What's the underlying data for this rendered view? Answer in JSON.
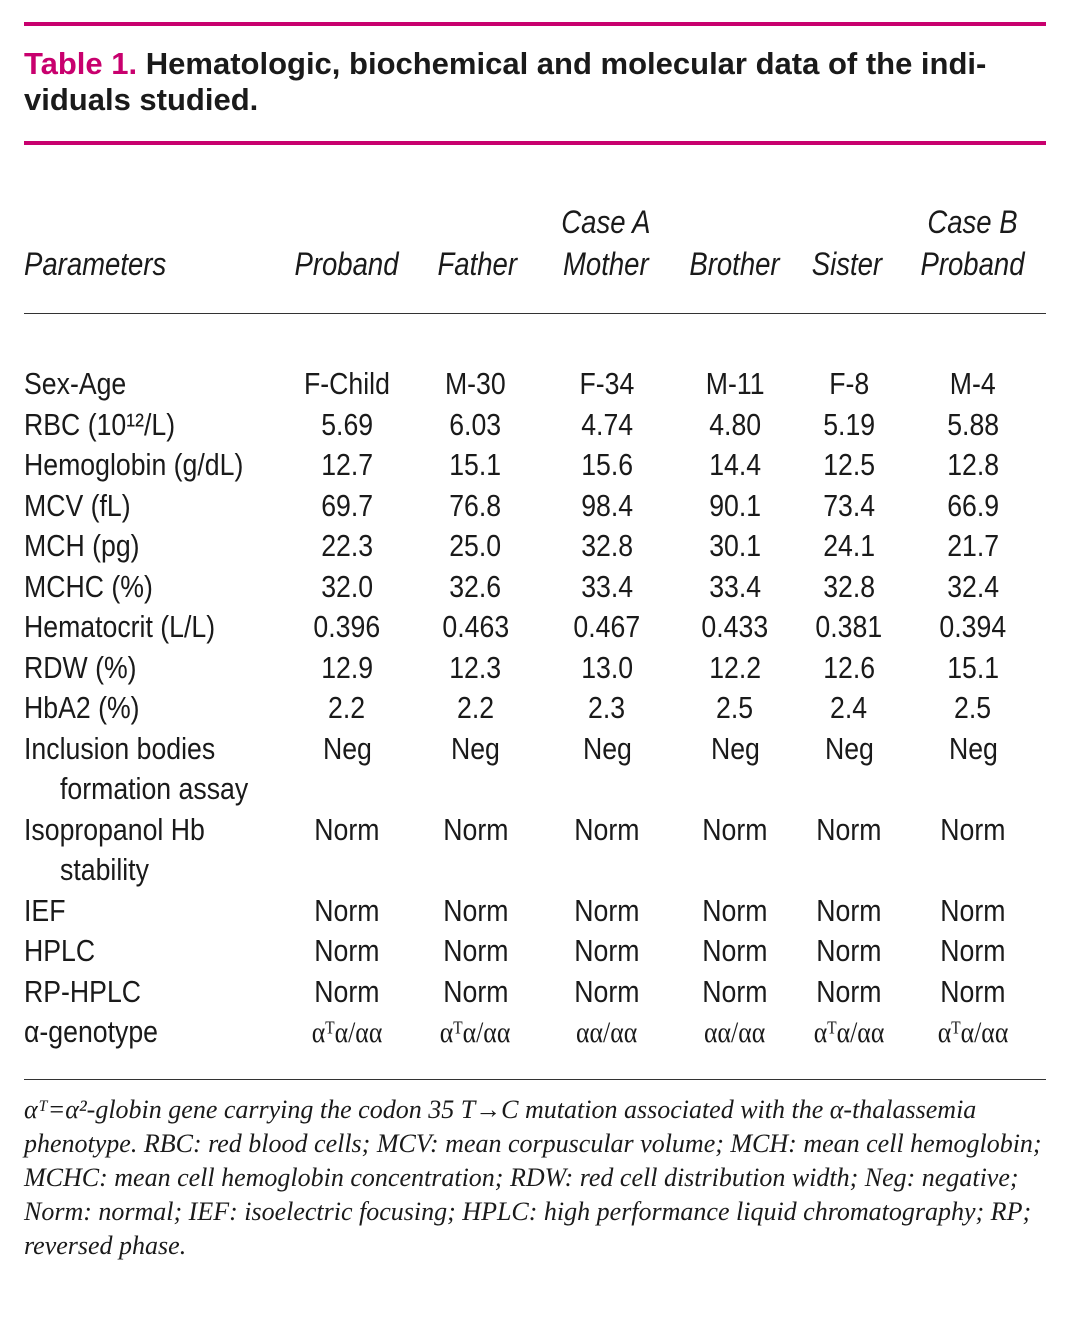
{
  "caption": {
    "label": "Table 1.",
    "text": "Hematologic, biochemical and molecular data of the indi- viduals studied."
  },
  "header": {
    "parameters": "Parameters",
    "case_a": "Case A",
    "case_b": "Case B",
    "columns": [
      "Proband",
      "Father",
      "Mother",
      "Brother",
      "Sister",
      "Proband"
    ]
  },
  "rows": [
    {
      "param": "Sex-Age",
      "values": [
        "F-Child",
        "M-30",
        "F-34",
        "M-11",
        "F-8",
        "M-4"
      ]
    },
    {
      "param": "RBC (10¹²/L)",
      "values": [
        "5.69",
        "6.03",
        "4.74",
        "4.80",
        "5.19",
        "5.88"
      ]
    },
    {
      "param": "Hemoglobin (g/dL)",
      "values": [
        "12.7",
        "15.1",
        "15.6",
        "14.4",
        "12.5",
        "12.8"
      ]
    },
    {
      "param": "MCV (fL)",
      "values": [
        "69.7",
        "76.8",
        "98.4",
        "90.1",
        "73.4",
        "66.9"
      ]
    },
    {
      "param": "MCH (pg)",
      "values": [
        "22.3",
        "25.0",
        "32.8",
        "30.1",
        "24.1",
        "21.7"
      ]
    },
    {
      "param": "MCHC (%)",
      "values": [
        "32.0",
        "32.6",
        "33.4",
        "33.4",
        "32.8",
        "32.4"
      ]
    },
    {
      "param": "Hematocrit (L/L)",
      "values": [
        "0.396",
        "0.463",
        "0.467",
        "0.433",
        "0.381",
        "0.394"
      ]
    },
    {
      "param": "RDW (%)",
      "values": [
        "12.9",
        "12.3",
        "13.0",
        "12.2",
        "12.6",
        "15.1"
      ]
    },
    {
      "param": "HbA2 (%)",
      "values": [
        "2.2",
        "2.2",
        "2.3",
        "2.5",
        "2.4",
        "2.5"
      ]
    },
    {
      "param": "Inclusion bodies",
      "param_cont": "formation assay",
      "values": [
        "Neg",
        "Neg",
        "Neg",
        "Neg",
        "Neg",
        "Neg"
      ]
    },
    {
      "param": "Isopropanol Hb",
      "param_cont": "stability",
      "values": [
        "Norm",
        "Norm",
        "Norm",
        "Norm",
        "Norm",
        "Norm"
      ]
    },
    {
      "param": "IEF",
      "values": [
        "Norm",
        "Norm",
        "Norm",
        "Norm",
        "Norm",
        "Norm"
      ]
    },
    {
      "param": "HPLC",
      "values": [
        "Norm",
        "Norm",
        "Norm",
        "Norm",
        "Norm",
        "Norm"
      ]
    },
    {
      "param": "RP-HPLC",
      "values": [
        "Norm",
        "Norm",
        "Norm",
        "Norm",
        "Norm",
        "Norm"
      ]
    },
    {
      "param": "α-genotype",
      "values": [
        "αᵀα/αα",
        "αᵀα/αα",
        "αα/αα",
        "αα/αα",
        "αᵀα/αα",
        "αᵀα/αα"
      ]
    }
  ],
  "footnote": "αᵀ=α²-globin gene carrying the codon 35 T→C mutation associated with the α-thalassemia phenotype. RBC: red blood cells; MCV: mean corpuscular volume; MCH: mean cell hemoglobin; MCHC: mean cell hemoglobin concentration; RDW: red cell distribution width; Neg: negative; Norm: normal; IEF: isoelectric focusing; HPLC: high performance liquid chromatography; RP; reversed phase.",
  "colors": {
    "accent": "#c8006e"
  }
}
